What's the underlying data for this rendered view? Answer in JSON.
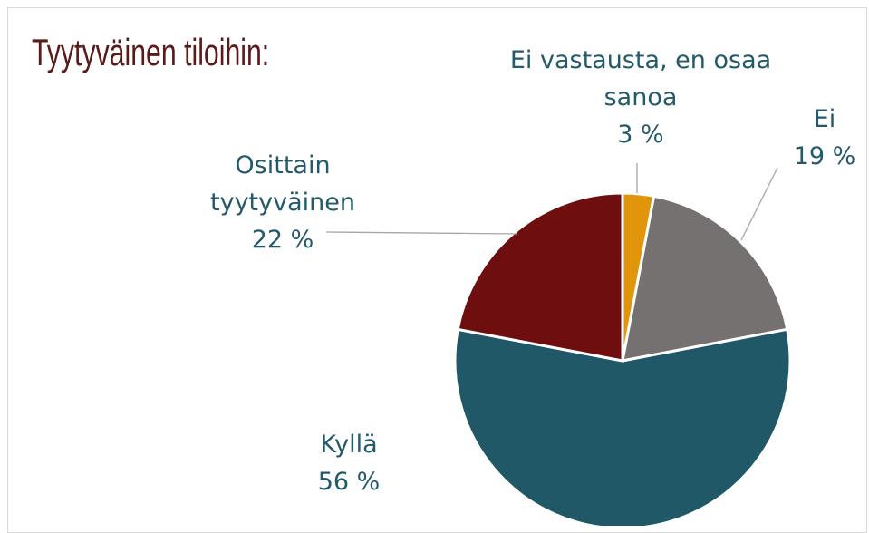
{
  "chart_data": {
    "type": "pie",
    "title": "Tyytyväinen tiloihin:",
    "categories": [
      "Ei vastausta, en osaa sanoa",
      "Ei",
      "Kyllä",
      "Osittain tyytyväinen"
    ],
    "values": [
      3,
      19,
      56,
      22
    ],
    "value_labels": [
      "3 %",
      "19 %",
      "56 %",
      "22 %"
    ],
    "colors": [
      "#e0950a",
      "#767171",
      "#215868",
      "#6e0e0e"
    ]
  }
}
